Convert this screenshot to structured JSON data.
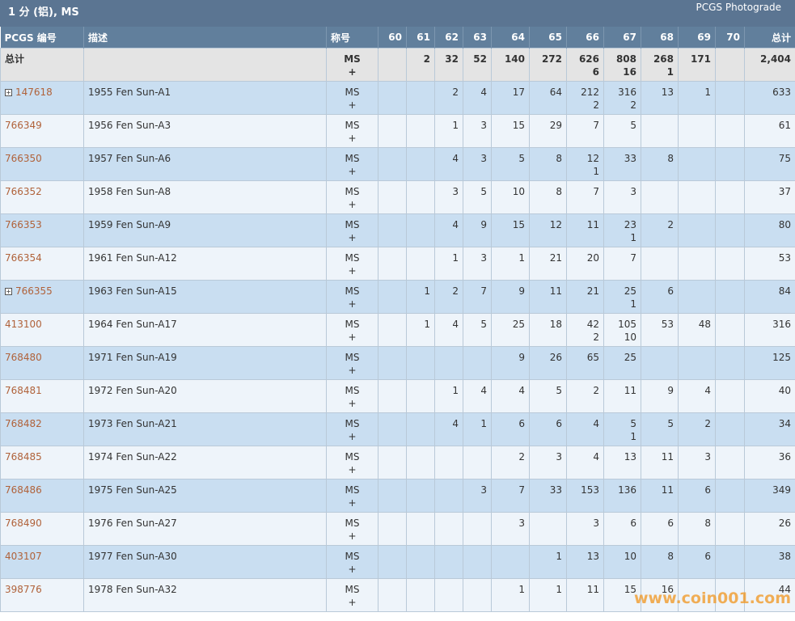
{
  "header": {
    "title": "1 分 (铝), MS",
    "link": "PCGS Photograde"
  },
  "columns": [
    "PCGS 编号",
    "描述",
    "称号",
    "60",
    "61",
    "62",
    "63",
    "64",
    "65",
    "66",
    "67",
    "68",
    "69",
    "70",
    "总计"
  ],
  "totals": {
    "label": "总计",
    "designation": "MS",
    "mark": "+",
    "grades": [
      null,
      2,
      32,
      52,
      140,
      272,
      626,
      808,
      268,
      171,
      null
    ],
    "plus": [
      null,
      null,
      null,
      null,
      null,
      null,
      6,
      16,
      1,
      null,
      null
    ],
    "total": "2,404"
  },
  "rows": [
    {
      "id": "147618",
      "desc": "1955 Fen Sun-A1",
      "designation": "MS",
      "mark": "+",
      "grades": [
        null,
        null,
        2,
        4,
        17,
        64,
        212,
        316,
        13,
        1,
        null
      ],
      "plus": [
        null,
        null,
        null,
        null,
        null,
        null,
        2,
        2,
        null,
        null,
        null
      ],
      "total": 633
    },
    {
      "id": "766349",
      "desc": "1956 Fen Sun-A3",
      "designation": "MS",
      "mark": "+",
      "grades": [
        null,
        null,
        1,
        3,
        15,
        29,
        7,
        5,
        null,
        null,
        null
      ],
      "plus": [
        null,
        null,
        null,
        null,
        null,
        null,
        null,
        null,
        null,
        null,
        null
      ],
      "total": 61
    },
    {
      "id": "766350",
      "desc": "1957 Fen Sun-A6",
      "designation": "MS",
      "mark": "+",
      "grades": [
        null,
        null,
        4,
        3,
        5,
        8,
        12,
        33,
        8,
        null,
        null
      ],
      "plus": [
        null,
        null,
        null,
        null,
        null,
        null,
        1,
        null,
        null,
        null,
        null
      ],
      "total": 75
    },
    {
      "id": "766352",
      "desc": "1958 Fen Sun-A8",
      "designation": "MS",
      "mark": "+",
      "grades": [
        null,
        null,
        3,
        5,
        10,
        8,
        7,
        3,
        null,
        null,
        null
      ],
      "plus": [
        null,
        null,
        null,
        null,
        null,
        null,
        null,
        null,
        null,
        null,
        null
      ],
      "total": 37
    },
    {
      "id": "766353",
      "desc": "1959 Fen Sun-A9",
      "designation": "MS",
      "mark": "+",
      "grades": [
        null,
        null,
        4,
        9,
        15,
        12,
        11,
        23,
        2,
        null,
        null
      ],
      "plus": [
        null,
        null,
        null,
        null,
        null,
        null,
        null,
        1,
        null,
        null,
        null
      ],
      "total": 80
    },
    {
      "id": "766354",
      "desc": "1961 Fen Sun-A12",
      "designation": "MS",
      "mark": "+",
      "grades": [
        null,
        null,
        1,
        3,
        1,
        21,
        20,
        7,
        null,
        null,
        null
      ],
      "plus": [
        null,
        null,
        null,
        null,
        null,
        null,
        null,
        null,
        null,
        null,
        null
      ],
      "total": 53
    },
    {
      "id": "766355",
      "desc": "1963 Fen Sun-A15",
      "designation": "MS",
      "mark": "+",
      "grades": [
        null,
        1,
        2,
        7,
        9,
        11,
        21,
        25,
        6,
        null,
        null
      ],
      "plus": [
        null,
        null,
        null,
        null,
        null,
        null,
        null,
        1,
        null,
        null,
        null
      ],
      "total": 84
    },
    {
      "id": "413100",
      "desc": "1964 Fen Sun-A17",
      "designation": "MS",
      "mark": "+",
      "grades": [
        null,
        1,
        4,
        5,
        25,
        18,
        42,
        105,
        53,
        48,
        null
      ],
      "plus": [
        null,
        null,
        null,
        null,
        null,
        null,
        2,
        10,
        null,
        null,
        null
      ],
      "total": 316
    },
    {
      "id": "768480",
      "desc": "1971 Fen Sun-A19",
      "designation": "MS",
      "mark": "+",
      "grades": [
        null,
        null,
        null,
        null,
        9,
        26,
        65,
        25,
        null,
        null,
        null
      ],
      "plus": [
        null,
        null,
        null,
        null,
        null,
        null,
        null,
        null,
        null,
        null,
        null
      ],
      "total": 125
    },
    {
      "id": "768481",
      "desc": "1972 Fen Sun-A20",
      "designation": "MS",
      "mark": "+",
      "grades": [
        null,
        null,
        1,
        4,
        4,
        5,
        2,
        11,
        9,
        4,
        null
      ],
      "plus": [
        null,
        null,
        null,
        null,
        null,
        null,
        null,
        null,
        null,
        null,
        null
      ],
      "total": 40
    },
    {
      "id": "768482",
      "desc": "1973 Fen Sun-A21",
      "designation": "MS",
      "mark": "+",
      "grades": [
        null,
        null,
        4,
        1,
        6,
        6,
        4,
        5,
        5,
        2,
        null
      ],
      "plus": [
        null,
        null,
        null,
        null,
        null,
        null,
        null,
        1,
        null,
        null,
        null
      ],
      "total": 34
    },
    {
      "id": "768485",
      "desc": "1974 Fen Sun-A22",
      "designation": "MS",
      "mark": "+",
      "grades": [
        null,
        null,
        null,
        null,
        2,
        3,
        4,
        13,
        11,
        3,
        null
      ],
      "plus": [
        null,
        null,
        null,
        null,
        null,
        null,
        null,
        null,
        null,
        null,
        null
      ],
      "total": 36
    },
    {
      "id": "768486",
      "desc": "1975 Fen Sun-A25",
      "designation": "MS",
      "mark": "+",
      "grades": [
        null,
        null,
        null,
        3,
        7,
        33,
        153,
        136,
        11,
        6,
        null
      ],
      "plus": [
        null,
        null,
        null,
        null,
        null,
        null,
        null,
        null,
        null,
        null,
        null
      ],
      "total": 349
    },
    {
      "id": "768490",
      "desc": "1976 Fen Sun-A27",
      "designation": "MS",
      "mark": "+",
      "grades": [
        null,
        null,
        null,
        null,
        3,
        null,
        3,
        6,
        6,
        8,
        null
      ],
      "plus": [
        null,
        null,
        null,
        null,
        null,
        null,
        null,
        null,
        null,
        null,
        null
      ],
      "total": 26
    },
    {
      "id": "403107",
      "desc": "1977 Fen Sun-A30",
      "designation": "MS",
      "mark": "+",
      "grades": [
        null,
        null,
        null,
        null,
        null,
        1,
        13,
        10,
        8,
        6,
        null
      ],
      "plus": [
        null,
        null,
        null,
        null,
        null,
        null,
        null,
        null,
        null,
        null,
        null
      ],
      "total": 38
    },
    {
      "id": "398776",
      "desc": "1978 Fen Sun-A32",
      "designation": "MS",
      "mark": "+",
      "grades": [
        null,
        null,
        null,
        null,
        1,
        1,
        11,
        15,
        16,
        null,
        null
      ],
      "plus": [
        null,
        null,
        null,
        null,
        null,
        null,
        null,
        null,
        null,
        null,
        null
      ],
      "total": 44
    }
  ],
  "watermark": "www.coin001.com"
}
